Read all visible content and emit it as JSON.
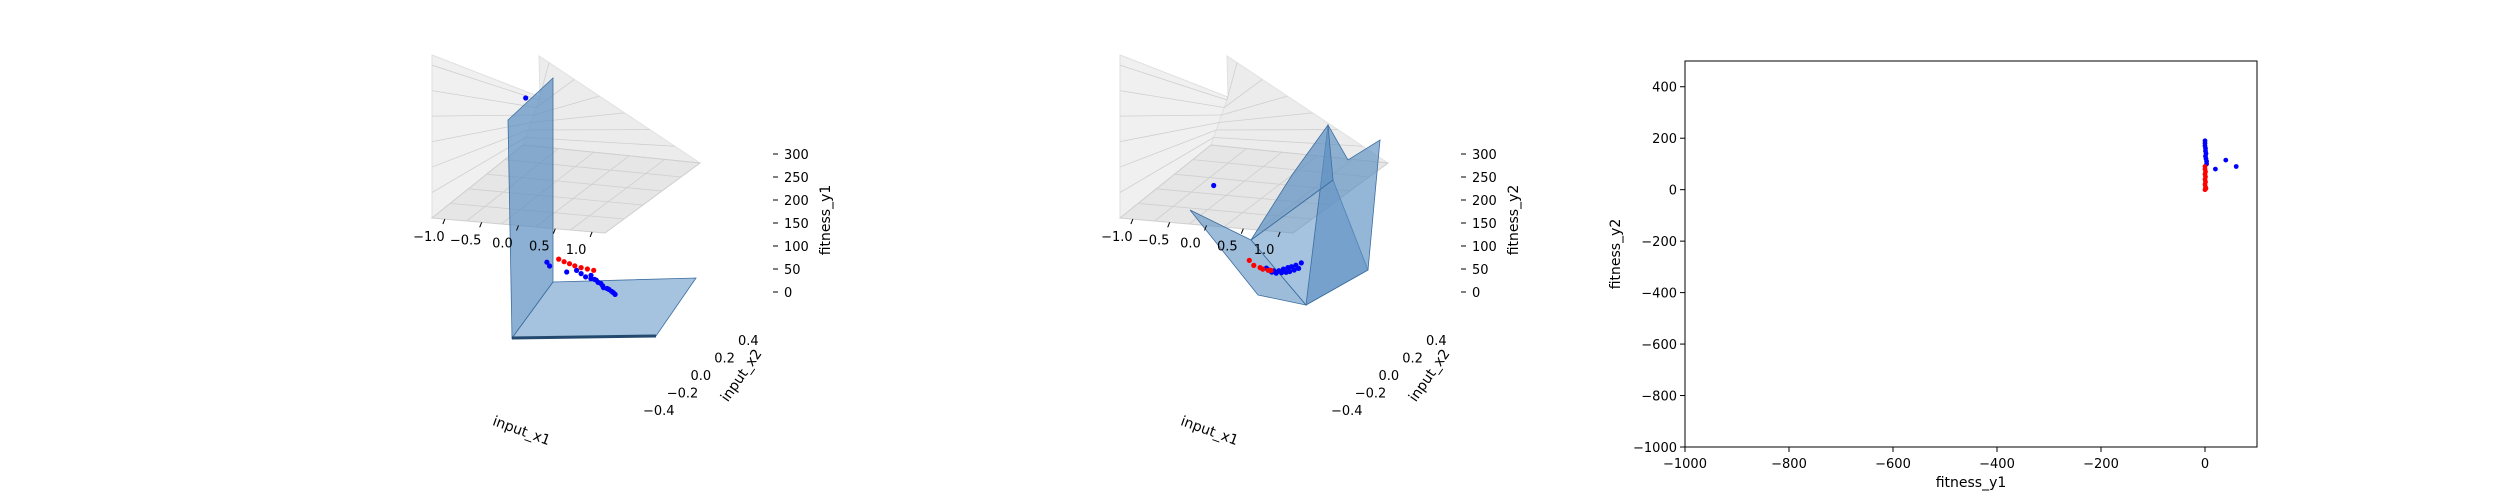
{
  "chart_data": [
    {
      "type": "scatter",
      "projection": "3d",
      "xlabel": "input_x1",
      "ylabel": "input_x2",
      "zlabel": "fitness_y1",
      "x_ticks": [
        "−1.0",
        "−0.5",
        "0.0",
        "0.5",
        "1.0"
      ],
      "y_ticks": [
        "−0.4",
        "−0.2",
        "0.0",
        "0.2",
        "0.4"
      ],
      "z_ticks": [
        "0",
        "50",
        "100",
        "150",
        "200",
        "250",
        "300"
      ],
      "xlim": [
        -1.2,
        1.2
      ],
      "ylim": [
        -0.5,
        0.5
      ],
      "zlim": [
        0,
        320
      ],
      "surface_color": "#5b8fc2",
      "series": [
        {
          "color": "#0000ff",
          "points": [
            [
              -1.1,
              0.45,
              300
            ],
            [
              -0.3,
              0.05,
              3
            ],
            [
              -0.2,
              0.0,
              4
            ],
            [
              0.1,
              -0.05,
              3
            ],
            [
              0.3,
              -0.05,
              2
            ],
            [
              0.5,
              -0.1,
              2
            ],
            [
              0.6,
              -0.12,
              3
            ],
            [
              0.7,
              -0.15,
              2
            ],
            [
              0.8,
              -0.2,
              2
            ],
            [
              0.9,
              -0.22,
              3
            ],
            [
              1.0,
              -0.25,
              2
            ],
            [
              1.05,
              -0.27,
              2
            ],
            [
              0.4,
              -0.08,
              1
            ],
            [
              0.55,
              -0.1,
              1
            ],
            [
              0.65,
              -0.14,
              2
            ],
            [
              0.75,
              -0.17,
              1
            ],
            [
              0.85,
              -0.2,
              1
            ],
            [
              0.95,
              -0.23,
              1
            ],
            [
              0.2,
              -0.02,
              3
            ],
            [
              0.45,
              -0.06,
              2
            ]
          ]
        },
        {
          "color": "#ff0000",
          "points": [
            [
              -0.2,
              0.1,
              3
            ],
            [
              -0.1,
              0.08,
              2
            ],
            [
              0.0,
              0.06,
              2
            ],
            [
              0.1,
              0.04,
              2
            ],
            [
              0.2,
              0.03,
              1
            ],
            [
              0.3,
              0.02,
              1
            ],
            [
              0.4,
              0.01,
              1
            ]
          ]
        }
      ]
    },
    {
      "type": "scatter",
      "projection": "3d",
      "xlabel": "input_x1",
      "ylabel": "input_x2",
      "zlabel": "fitness_y2",
      "x_ticks": [
        "−1.0",
        "−0.5",
        "0.0",
        "0.5",
        "1.0"
      ],
      "y_ticks": [
        "−0.4",
        "−0.2",
        "0.0",
        "0.2",
        "0.4"
      ],
      "z_ticks": [
        "0",
        "50",
        "100",
        "150",
        "200",
        "250",
        "300"
      ],
      "xlim": [
        -1.2,
        1.2
      ],
      "ylim": [
        -0.5,
        0.5
      ],
      "zlim": [
        0,
        320
      ],
      "surface_color": "#5b8fc2",
      "series": [
        {
          "color": "#0000ff",
          "points": [
            [
              -1.1,
              0.45,
              100
            ],
            [
              0.2,
              0.0,
              5
            ],
            [
              0.3,
              -0.05,
              10
            ],
            [
              0.4,
              -0.08,
              15
            ],
            [
              0.5,
              -0.1,
              20
            ],
            [
              0.6,
              -0.13,
              30
            ],
            [
              0.7,
              -0.16,
              40
            ],
            [
              0.8,
              -0.2,
              50
            ],
            [
              0.9,
              -0.23,
              60
            ],
            [
              1.0,
              -0.25,
              70
            ],
            [
              0.35,
              -0.06,
              8
            ],
            [
              0.45,
              -0.09,
              12
            ],
            [
              0.55,
              -0.11,
              18
            ],
            [
              0.65,
              -0.14,
              25
            ],
            [
              0.75,
              -0.18,
              35
            ],
            [
              0.85,
              -0.21,
              45
            ],
            [
              0.95,
              -0.24,
              55
            ]
          ]
        },
        {
          "color": "#ff0000",
          "points": [
            [
              -0.1,
              0.05,
              10
            ],
            [
              0.0,
              0.02,
              5
            ],
            [
              0.1,
              0.01,
              3
            ],
            [
              0.15,
              0.0,
              2
            ],
            [
              0.25,
              -0.02,
              4
            ],
            [
              0.3,
              -0.03,
              6
            ]
          ]
        }
      ]
    },
    {
      "type": "scatter",
      "xlabel": "fitness_y1",
      "ylabel": "fitness_y2",
      "xlim": [
        -1000,
        100
      ],
      "ylim": [
        -1000,
        500
      ],
      "x_ticks": [
        -1000,
        -800,
        -600,
        -400,
        -200,
        0
      ],
      "x_tick_labels": [
        "−1000",
        "−800",
        "−600",
        "−400",
        "−200",
        "0"
      ],
      "y_ticks": [
        -1000,
        -800,
        -600,
        -400,
        -200,
        0,
        200,
        400
      ],
      "y_tick_labels": [
        "−1000",
        "−800",
        "−600",
        "−400",
        "−200",
        "0",
        "200",
        "400"
      ],
      "series": [
        {
          "color": "#0000ff",
          "points": [
            [
              0,
              190
            ],
            [
              0,
              180
            ],
            [
              0,
              170
            ],
            [
              1,
              160
            ],
            [
              1,
              150
            ],
            [
              2,
              140
            ],
            [
              1,
              130
            ],
            [
              2,
              120
            ],
            [
              3,
              110
            ],
            [
              3,
              100
            ],
            [
              40,
              115
            ],
            [
              60,
              90
            ],
            [
              20,
              80
            ]
          ]
        },
        {
          "color": "#ff0000",
          "points": [
            [
              0,
              90
            ],
            [
              0,
              80
            ],
            [
              1,
              70
            ],
            [
              0,
              60
            ],
            [
              1,
              50
            ],
            [
              0,
              40
            ],
            [
              1,
              30
            ],
            [
              0,
              20
            ],
            [
              1,
              10
            ],
            [
              0,
              0
            ],
            [
              2,
              5
            ]
          ]
        }
      ]
    }
  ]
}
